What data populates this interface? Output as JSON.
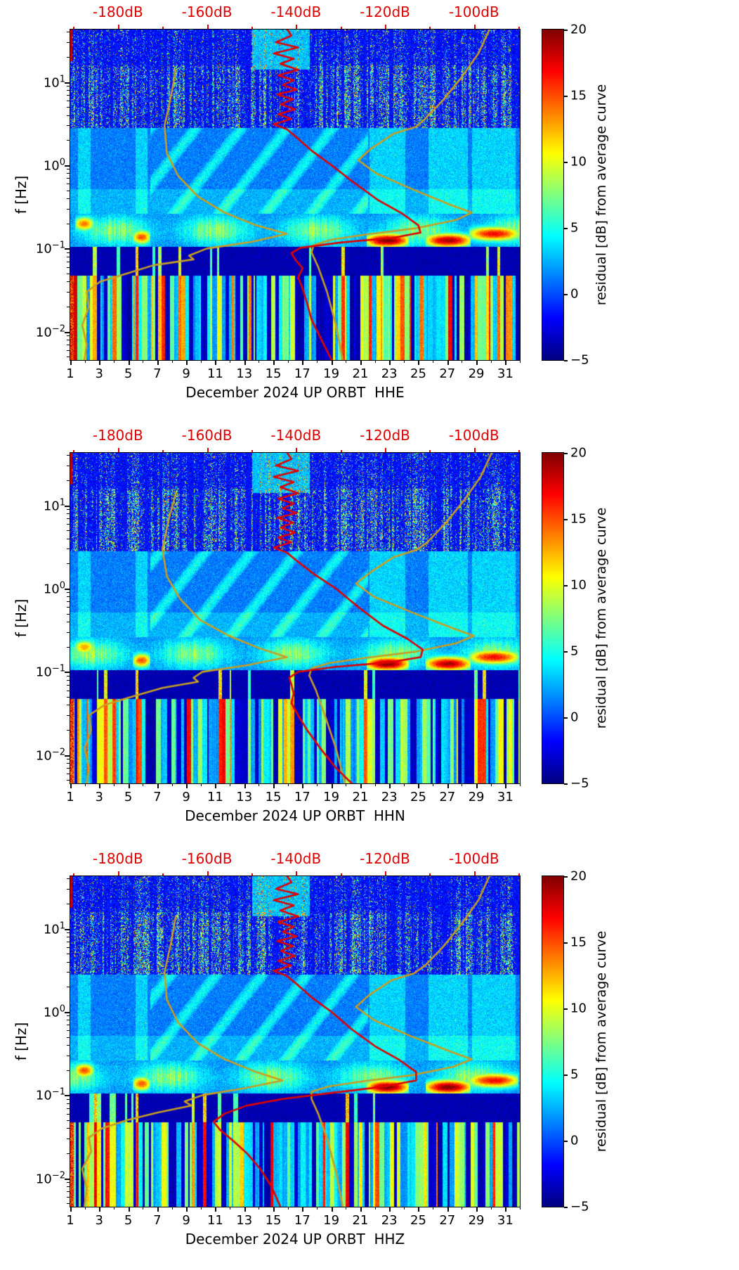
{
  "figure": {
    "background": "#ffffff",
    "colors": {
      "red_curve": "#e00000",
      "yellow_curve": "#c79e23",
      "top_axis_text": "#dd0000",
      "axis_text": "#000000"
    },
    "y_axis": {
      "label": "f [Hz]",
      "tick_base": "10",
      "tick_exponents": [
        "1",
        "0",
        "−1",
        "−2"
      ],
      "tick_values_log10": [
        1,
        0,
        -1,
        -2
      ],
      "log_max": 1.63,
      "log_min": -2.34
    },
    "x_axis": {
      "tick_labels": [
        "1",
        "3",
        "5",
        "7",
        "9",
        "11",
        "13",
        "15",
        "17",
        "19",
        "21",
        "23",
        "25",
        "27",
        "29",
        "31"
      ],
      "tick_values": [
        1,
        3,
        5,
        7,
        9,
        11,
        13,
        15,
        17,
        19,
        21,
        23,
        25,
        27,
        29,
        31
      ],
      "day_min": 1,
      "day_max": 32
    },
    "top_axis": {
      "labels": [
        "-180dB",
        "-160dB",
        "-140dB",
        "-120dB",
        "-100dB"
      ],
      "values": [
        -180,
        -160,
        -140,
        -120,
        -100
      ],
      "db_min": -190.7,
      "db_max": -89.7
    },
    "colorbar": {
      "title": "residual [dB] from average curve",
      "tick_labels": [
        "20",
        "15",
        "10",
        "5",
        "0",
        "−5"
      ],
      "tick_values": [
        20,
        15,
        10,
        5,
        0,
        -5
      ],
      "vmin": -5,
      "vmax": 20,
      "colormap": "jet"
    }
  },
  "chart_data": [
    {
      "type": "heatmap",
      "name": "HHE",
      "xlabel": "December 2024 UP ORBT  HHE",
      "x_unit": "day of December 2024",
      "y_unit": "Hz (log scale)",
      "value_unit": "residual dB from average curve",
      "f_range_hz": [
        0.0046,
        43
      ],
      "residual_range_db": [
        -5,
        20
      ],
      "storm_hot_spots": [
        {
          "day_start": 1.5,
          "day_end": 2.4,
          "log10_f": -0.7,
          "peak_residual_db": 14
        },
        {
          "day_start": 5.5,
          "day_end": 6.3,
          "log10_f": -0.86,
          "peak_residual_db": 15
        },
        {
          "day_start": 21.6,
          "day_end": 24.1,
          "log10_f": -0.9,
          "peak_residual_db": 20
        },
        {
          "day_start": 25.7,
          "day_end": 28.4,
          "log10_f": -0.9,
          "peak_residual_db": 19
        },
        {
          "day_start": 28.7,
          "day_end": 31.7,
          "log10_f": -0.82,
          "peak_residual_db": 17
        }
      ],
      "red_curve_db_vs_hz": [
        [
          -142,
          43
        ],
        [
          -141,
          36
        ],
        [
          -144.5,
          30
        ],
        [
          -139.5,
          26
        ],
        [
          -145,
          22
        ],
        [
          -140.5,
          19
        ],
        [
          -143.5,
          16.5
        ],
        [
          -139.5,
          14
        ],
        [
          -144,
          12
        ],
        [
          -140.5,
          10.5
        ],
        [
          -143,
          9.2
        ],
        [
          -139.8,
          8.1
        ],
        [
          -144.2,
          7.1
        ],
        [
          -140.6,
          6.2
        ],
        [
          -143.4,
          5.4
        ],
        [
          -140.2,
          4.7
        ],
        [
          -144,
          4.1
        ],
        [
          -141,
          3.6
        ],
        [
          -145,
          3.1
        ],
        [
          -142,
          2.7
        ],
        [
          -140,
          2.2
        ],
        [
          -136.5,
          1.5
        ],
        [
          -132,
          1.0
        ],
        [
          -127,
          0.62
        ],
        [
          -121.5,
          0.38
        ],
        [
          -116,
          0.26
        ],
        [
          -112.5,
          0.19
        ],
        [
          -112,
          0.155
        ],
        [
          -118,
          0.135
        ],
        [
          -130,
          0.118
        ],
        [
          -139,
          0.102
        ],
        [
          -141,
          0.088
        ],
        [
          -140,
          0.072
        ],
        [
          -138.5,
          0.058
        ],
        [
          -139.5,
          0.045
        ],
        [
          -138.5,
          0.033
        ],
        [
          -137.5,
          0.022
        ],
        [
          -136.5,
          0.014
        ],
        [
          -134.5,
          0.0085
        ],
        [
          -132,
          0.0046
        ]
      ],
      "yellow_lower_curve_db_vs_hz": [
        [
          -167,
          14
        ],
        [
          -168,
          7
        ],
        [
          -169.5,
          3
        ],
        [
          -169,
          1.4
        ],
        [
          -166.5,
          0.75
        ],
        [
          -162,
          0.42
        ],
        [
          -156,
          0.27
        ],
        [
          -149,
          0.19
        ],
        [
          -142,
          0.15
        ],
        [
          -150,
          0.12
        ],
        [
          -160,
          0.1
        ],
        [
          -164,
          0.082
        ],
        [
          -163,
          0.074
        ],
        [
          -172,
          0.063
        ],
        [
          -178,
          0.05
        ],
        [
          -184,
          0.04
        ],
        [
          -187,
          0.03
        ],
        [
          -186.5,
          0.02
        ],
        [
          -188,
          0.012
        ],
        [
          -187,
          0.007
        ],
        [
          -187.5,
          0.0046
        ]
      ],
      "yellow_upper_curve_db_vs_hz": [
        [
          -96.5,
          43
        ],
        [
          -99,
          22
        ],
        [
          -103,
          11
        ],
        [
          -107,
          6
        ],
        [
          -111,
          3.6
        ],
        [
          -113,
          2.9
        ],
        [
          -118,
          2.4
        ],
        [
          -123,
          1.6
        ],
        [
          -126,
          1.15
        ],
        [
          -122,
          0.8
        ],
        [
          -114,
          0.52
        ],
        [
          -105,
          0.33
        ],
        [
          -100.5,
          0.27
        ],
        [
          -104,
          0.22
        ],
        [
          -113,
          0.175
        ],
        [
          -124,
          0.148
        ],
        [
          -132,
          0.128
        ],
        [
          -136,
          0.11
        ],
        [
          -136.5,
          0.09
        ],
        [
          -135,
          0.06
        ],
        [
          -133,
          0.03
        ],
        [
          -131,
          0.012
        ],
        [
          -129.5,
          0.0046
        ]
      ]
    },
    {
      "type": "heatmap",
      "name": "HHN",
      "xlabel": "December 2024 UP ORBT  HHN",
      "x_unit": "day of December 2024",
      "y_unit": "Hz (log scale)",
      "value_unit": "residual dB from average curve",
      "f_range_hz": [
        0.0046,
        43
      ],
      "residual_range_db": [
        -5,
        20
      ],
      "storm_hot_spots": [
        {
          "day_start": 1.5,
          "day_end": 2.4,
          "log10_f": -0.7,
          "peak_residual_db": 13
        },
        {
          "day_start": 5.5,
          "day_end": 6.3,
          "log10_f": -0.86,
          "peak_residual_db": 15
        },
        {
          "day_start": 21.6,
          "day_end": 24.1,
          "log10_f": -0.9,
          "peak_residual_db": 20
        },
        {
          "day_start": 25.7,
          "day_end": 28.4,
          "log10_f": -0.9,
          "peak_residual_db": 19
        },
        {
          "day_start": 28.7,
          "day_end": 31.7,
          "log10_f": -0.82,
          "peak_residual_db": 17
        }
      ],
      "red_curve_db_vs_hz": [
        [
          -142,
          43
        ],
        [
          -141,
          36
        ],
        [
          -144.5,
          30
        ],
        [
          -139.5,
          26
        ],
        [
          -145,
          22
        ],
        [
          -140.5,
          19
        ],
        [
          -143.5,
          16.5
        ],
        [
          -139.5,
          14
        ],
        [
          -144,
          12
        ],
        [
          -140.5,
          10.5
        ],
        [
          -143,
          9.2
        ],
        [
          -139.8,
          8.1
        ],
        [
          -144.2,
          7.1
        ],
        [
          -140.6,
          6.2
        ],
        [
          -143.4,
          5.4
        ],
        [
          -140.2,
          4.7
        ],
        [
          -144,
          4.1
        ],
        [
          -141,
          3.6
        ],
        [
          -145,
          3.1
        ],
        [
          -142,
          2.7
        ],
        [
          -140,
          2.2
        ],
        [
          -136,
          1.5
        ],
        [
          -131,
          1.0
        ],
        [
          -126,
          0.6
        ],
        [
          -120.5,
          0.36
        ],
        [
          -115,
          0.25
        ],
        [
          -111.5,
          0.185
        ],
        [
          -112,
          0.15
        ],
        [
          -119,
          0.13
        ],
        [
          -131,
          0.115
        ],
        [
          -139.5,
          0.1
        ],
        [
          -141.5,
          0.085
        ],
        [
          -141,
          0.07
        ],
        [
          -140.5,
          0.055
        ],
        [
          -141,
          0.042
        ],
        [
          -139.5,
          0.03
        ],
        [
          -137.5,
          0.02
        ],
        [
          -134.5,
          0.012
        ],
        [
          -131,
          0.007
        ],
        [
          -127.5,
          0.0046
        ]
      ],
      "yellow_lower_curve_db_vs_hz": [
        [
          -167,
          14
        ],
        [
          -168.5,
          7
        ],
        [
          -170,
          3
        ],
        [
          -169,
          1.4
        ],
        [
          -166,
          0.75
        ],
        [
          -161.5,
          0.42
        ],
        [
          -155,
          0.27
        ],
        [
          -148,
          0.19
        ],
        [
          -142,
          0.15
        ],
        [
          -151,
          0.12
        ],
        [
          -161,
          0.1
        ],
        [
          -163,
          0.085
        ],
        [
          -162,
          0.076
        ],
        [
          -170,
          0.064
        ],
        [
          -177,
          0.05
        ],
        [
          -183,
          0.04
        ],
        [
          -186.5,
          0.03
        ],
        [
          -186,
          0.02
        ],
        [
          -187.5,
          0.012
        ],
        [
          -186.5,
          0.007
        ],
        [
          -187,
          0.0046
        ]
      ],
      "yellow_upper_curve_db_vs_hz": [
        [
          -96,
          43
        ],
        [
          -98.5,
          22
        ],
        [
          -102.5,
          11
        ],
        [
          -106.5,
          6
        ],
        [
          -110.5,
          3.6
        ],
        [
          -113,
          2.9
        ],
        [
          -118,
          2.4
        ],
        [
          -123,
          1.6
        ],
        [
          -126.5,
          1.15
        ],
        [
          -122.5,
          0.8
        ],
        [
          -114,
          0.52
        ],
        [
          -104.5,
          0.33
        ],
        [
          -100,
          0.27
        ],
        [
          -104,
          0.22
        ],
        [
          -113,
          0.175
        ],
        [
          -124,
          0.148
        ],
        [
          -132.5,
          0.128
        ],
        [
          -136.5,
          0.11
        ],
        [
          -137,
          0.09
        ],
        [
          -135.5,
          0.06
        ],
        [
          -133.5,
          0.03
        ],
        [
          -131,
          0.012
        ],
        [
          -129,
          0.0046
        ]
      ]
    },
    {
      "type": "heatmap",
      "name": "HHZ",
      "xlabel": "December 2024 UP ORBT  HHZ",
      "x_unit": "day of December 2024",
      "y_unit": "Hz (log scale)",
      "value_unit": "residual dB from average curve",
      "f_range_hz": [
        0.0046,
        43
      ],
      "residual_range_db": [
        -5,
        20
      ],
      "storm_hot_spots": [
        {
          "day_start": 1.5,
          "day_end": 2.4,
          "log10_f": -0.7,
          "peak_residual_db": 15
        },
        {
          "day_start": 5.5,
          "day_end": 6.3,
          "log10_f": -0.86,
          "peak_residual_db": 15
        },
        {
          "day_start": 21.6,
          "day_end": 24.1,
          "log10_f": -0.9,
          "peak_residual_db": 20
        },
        {
          "day_start": 25.7,
          "day_end": 28.4,
          "log10_f": -0.9,
          "peak_residual_db": 20
        },
        {
          "day_start": 28.7,
          "day_end": 31.7,
          "log10_f": -0.82,
          "peak_residual_db": 17
        }
      ],
      "red_curve_db_vs_hz": [
        [
          -142,
          43
        ],
        [
          -141,
          36
        ],
        [
          -144.5,
          30
        ],
        [
          -139.5,
          26
        ],
        [
          -145,
          22
        ],
        [
          -140.5,
          19
        ],
        [
          -143.5,
          16.5
        ],
        [
          -139.5,
          14
        ],
        [
          -144,
          12
        ],
        [
          -140.5,
          10.5
        ],
        [
          -143,
          9.2
        ],
        [
          -139.8,
          8.1
        ],
        [
          -144.2,
          7.1
        ],
        [
          -140.6,
          6.2
        ],
        [
          -143.4,
          5.4
        ],
        [
          -140.2,
          4.7
        ],
        [
          -144,
          4.1
        ],
        [
          -141,
          3.6
        ],
        [
          -145,
          3.1
        ],
        [
          -142,
          2.7
        ],
        [
          -140,
          2.2
        ],
        [
          -136.5,
          1.5
        ],
        [
          -132,
          1.0
        ],
        [
          -127.5,
          0.62
        ],
        [
          -122,
          0.38
        ],
        [
          -117,
          0.27
        ],
        [
          -113,
          0.19
        ],
        [
          -113,
          0.15
        ],
        [
          -121,
          0.125
        ],
        [
          -133,
          0.105
        ],
        [
          -143,
          0.09
        ],
        [
          -151,
          0.075
        ],
        [
          -156,
          0.06
        ],
        [
          -158.5,
          0.048
        ],
        [
          -157,
          0.038
        ],
        [
          -154,
          0.028
        ],
        [
          -151,
          0.02
        ],
        [
          -148,
          0.013
        ],
        [
          -145.5,
          0.008
        ],
        [
          -143.5,
          0.0046
        ]
      ],
      "yellow_lower_curve_db_vs_hz": [
        [
          -167,
          14
        ],
        [
          -168,
          7
        ],
        [
          -169.5,
          3
        ],
        [
          -169,
          1.4
        ],
        [
          -166.5,
          0.75
        ],
        [
          -162,
          0.42
        ],
        [
          -156,
          0.27
        ],
        [
          -149,
          0.19
        ],
        [
          -143,
          0.15
        ],
        [
          -152,
          0.12
        ],
        [
          -161,
          0.1
        ],
        [
          -165,
          0.084
        ],
        [
          -163.5,
          0.075
        ],
        [
          -171,
          0.062
        ],
        [
          -178,
          0.05
        ],
        [
          -183.5,
          0.04
        ],
        [
          -186.5,
          0.031
        ],
        [
          -186,
          0.021
        ],
        [
          -188,
          0.013
        ],
        [
          -187,
          0.0075
        ],
        [
          -187.5,
          0.0046
        ]
      ],
      "yellow_upper_curve_db_vs_hz": [
        [
          -96.5,
          43
        ],
        [
          -99,
          22
        ],
        [
          -103,
          11
        ],
        [
          -107,
          6
        ],
        [
          -111,
          3.6
        ],
        [
          -113.5,
          2.9
        ],
        [
          -118.5,
          2.4
        ],
        [
          -123.5,
          1.6
        ],
        [
          -126.5,
          1.15
        ],
        [
          -122.5,
          0.8
        ],
        [
          -114.5,
          0.52
        ],
        [
          -105,
          0.33
        ],
        [
          -100.5,
          0.27
        ],
        [
          -104.5,
          0.22
        ],
        [
          -113.5,
          0.175
        ],
        [
          -124.5,
          0.148
        ],
        [
          -132.5,
          0.128
        ],
        [
          -136.5,
          0.11
        ],
        [
          -136.5,
          0.09
        ],
        [
          -135,
          0.06
        ],
        [
          -133,
          0.03
        ],
        [
          -131,
          0.012
        ],
        [
          -129.5,
          0.0046
        ]
      ]
    }
  ]
}
